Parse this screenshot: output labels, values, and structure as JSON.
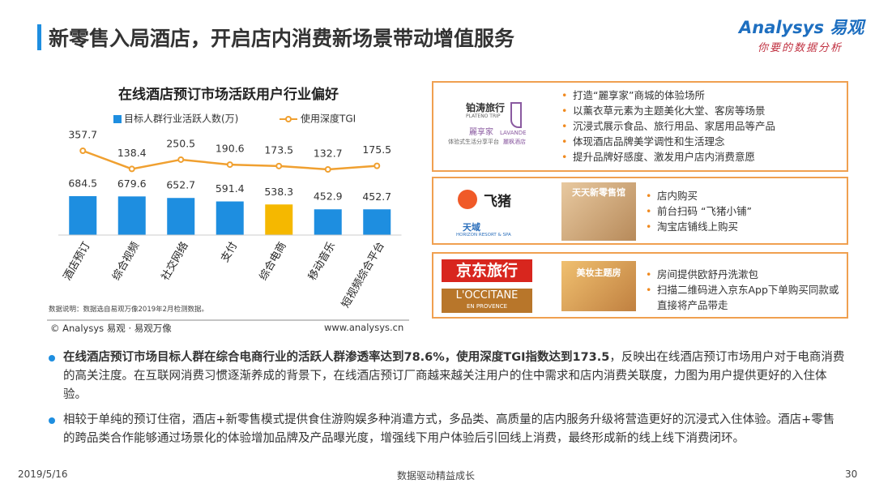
{
  "header": {
    "title": "新零售入局酒店，开启店内消费新场景带动增值服务",
    "logo_brand": "Analysys",
    "logo_cn": "易观",
    "logo_tagline": "你要的数据分析"
  },
  "chart_data": {
    "type": "bar",
    "title": "在线酒店预订市场活跃用户行业偏好",
    "categories": [
      "酒店预订",
      "综合视频",
      "社交网络",
      "支付",
      "综合电商",
      "移动音乐",
      "短视频综合平台"
    ],
    "series": [
      {
        "name": "目标人群行业活跃人数(万)",
        "color": "#1e8ee0",
        "colors": [
          "#1e8ee0",
          "#1e8ee0",
          "#1e8ee0",
          "#1e8ee0",
          "#f5b800",
          "#1e8ee0",
          "#1e8ee0"
        ],
        "values": [
          684.5,
          679.6,
          652.7,
          591.4,
          538.3,
          452.9,
          452.7
        ]
      },
      {
        "name": "使用深度TGI",
        "type": "line",
        "color": "#f0a030",
        "values": [
          357.7,
          138.4,
          250.5,
          190.6,
          173.5,
          132.7,
          175.5
        ]
      }
    ],
    "note": "数据说明：数据选自易观万像2019年2月检测数据。",
    "source": "© Analysys 易观 · 易观万像",
    "website": "www.analysys.cn"
  },
  "panels": [
    {
      "logos": [
        "铂涛旅行",
        "PLATENO TRIP",
        "麗享家",
        "体验式生活分享平台",
        "LAVANDE",
        "麗枫酒店"
      ],
      "bullets": [
        "打造“麗享家”商城的体验场所",
        "以薰衣草元素为主题美化大堂、客房等场景",
        "沉浸式展示食品、旅行用品、家居用品等产品",
        "体现酒店品牌美学调性和生活理念",
        "提升品牌好感度、激发用户店内消费意愿"
      ]
    },
    {
      "logos": [
        "飞猪",
        "天域",
        "HORIZON RESORT & SPA"
      ],
      "image_label": "天天新零售馆",
      "bullets": [
        "店内购买",
        "前台扫码 “飞猪小铺”",
        "淘宝店铺线上购买"
      ]
    },
    {
      "logos": [
        "京东旅行",
        "L'OCCITANE",
        "EN PROVENCE"
      ],
      "image_label": "美妆主题房",
      "bullets": [
        "房间提供欧舒丹洗漱包",
        "扫描二维码进入京东App下单购买同款或直接将产品带走"
      ]
    }
  ],
  "bullets": [
    {
      "bold": "在线酒店预订市场目标人群在综合电商行业的活跃人群渗透率达到78.6%，使用深度TGI指数达到173.5",
      "text": "，反映出在线酒店预订市场用户对于电商消费的高关注度。在互联网消费习惯逐渐养成的背景下，在线酒店预订厂商越来越关注用户的住中需求和店内消费关联度，力图为用户提供更好的入住体验。"
    },
    {
      "text": "相较于单纯的预订住宿，酒店+新零售模式提供食住游购娱多种消遣方式，多品类、高质量的店内服务升级将营造更好的沉浸式入住体验。酒店+零售的跨品类合作能够通过场景化的体验增加品牌及产品曝光度，增强线下用户体验后引回线上消费，最终形成新的线上线下消费闭环。"
    }
  ],
  "footer": {
    "date": "2019/5/16",
    "slogan": "数据驱动精益成长",
    "page": "30"
  }
}
